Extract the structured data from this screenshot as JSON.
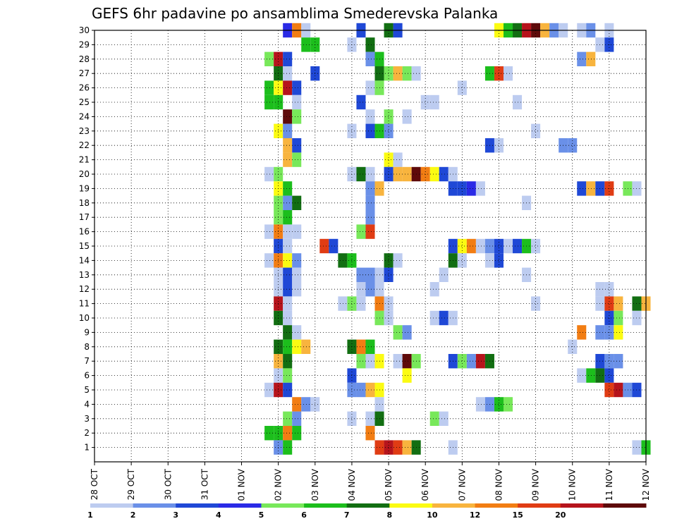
{
  "chart_data": {
    "type": "heatmap",
    "title": "GEFS 6hr padavine po ansamblima Smederevska Palanka",
    "xlabel": "",
    "ylabel": "",
    "x_tick_labels": [
      "28 OCT",
      "29 OCT",
      "30 OCT",
      "31 OCT",
      "01 NOV",
      "02 NOV",
      "03 NOV",
      "04 NOV",
      "05 NOV",
      "06 NOV",
      "07 NOV",
      "08 NOV",
      "09 NOV",
      "10 NOV",
      "11 NOV",
      "12 NOV"
    ],
    "y_tick_labels": [
      "1",
      "2",
      "3",
      "4",
      "5",
      "6",
      "7",
      "8",
      "9",
      "10",
      "11",
      "12",
      "13",
      "14",
      "15",
      "16",
      "17",
      "18",
      "19",
      "20",
      "21",
      "22",
      "23",
      "24",
      "25",
      "26",
      "27",
      "28",
      "29",
      "30"
    ],
    "x_range_steps": [
      0,
      60
    ],
    "y_range_members": [
      0,
      30
    ],
    "grid": true,
    "legend_position": "bottom",
    "colorbar": {
      "labels": [
        "1",
        "2",
        "3",
        "4",
        "5",
        "6",
        "7",
        "8",
        "10",
        "12",
        "15",
        "20"
      ],
      "colors": [
        "#bdccf0",
        "#6a90e8",
        "#1f48d6",
        "#2a2ae6",
        "#78e85a",
        "#1cbe1c",
        "#126e12",
        "#fbfb12",
        "#f8b43e",
        "#f27d13",
        "#e03c14",
        "#b6141c",
        "#5e0a0a"
      ]
    },
    "cell_level_note": "each cell value is an index into colorbar.colors (0 = lightest)",
    "cells": [
      {
        "m": 30,
        "s": [
          [
            21,
            3
          ],
          [
            22,
            9
          ],
          [
            23,
            0
          ],
          [
            29,
            2
          ],
          [
            32,
            6
          ],
          [
            33,
            2
          ],
          [
            44,
            7
          ],
          [
            45,
            5
          ],
          [
            46,
            6
          ],
          [
            47,
            11
          ],
          [
            48,
            12
          ],
          [
            49,
            8
          ],
          [
            50,
            1
          ],
          [
            51,
            0
          ],
          [
            53,
            0
          ],
          [
            54,
            1
          ],
          [
            56,
            0
          ]
        ]
      },
      {
        "m": 29,
        "s": [
          [
            23,
            5
          ],
          [
            24,
            5
          ],
          [
            28,
            0
          ],
          [
            30,
            6
          ],
          [
            55,
            0
          ],
          [
            56,
            2
          ]
        ]
      },
      {
        "m": 28,
        "s": [
          [
            19,
            4
          ],
          [
            20,
            11
          ],
          [
            21,
            2
          ],
          [
            30,
            1
          ],
          [
            31,
            5
          ],
          [
            53,
            1
          ],
          [
            54,
            8
          ]
        ]
      },
      {
        "m": 27,
        "s": [
          [
            20,
            6
          ],
          [
            21,
            0
          ],
          [
            24,
            2
          ],
          [
            31,
            6
          ],
          [
            32,
            4
          ],
          [
            33,
            8
          ],
          [
            34,
            4
          ],
          [
            35,
            0
          ],
          [
            43,
            5
          ],
          [
            44,
            10
          ],
          [
            45,
            0
          ]
        ]
      },
      {
        "m": 26,
        "s": [
          [
            19,
            5
          ],
          [
            20,
            7
          ],
          [
            21,
            11
          ],
          [
            22,
            2
          ],
          [
            30,
            0
          ],
          [
            31,
            4
          ],
          [
            40,
            0
          ]
        ]
      },
      {
        "m": 25,
        "s": [
          [
            19,
            5
          ],
          [
            20,
            5
          ],
          [
            22,
            0
          ],
          [
            29,
            2
          ],
          [
            36,
            0
          ],
          [
            37,
            0
          ],
          [
            46,
            0
          ]
        ]
      },
      {
        "m": 24,
        "s": [
          [
            21,
            12
          ],
          [
            22,
            4
          ],
          [
            30,
            0
          ],
          [
            32,
            4
          ],
          [
            34,
            0
          ]
        ]
      },
      {
        "m": 23,
        "s": [
          [
            20,
            7
          ],
          [
            21,
            1
          ],
          [
            28,
            0
          ],
          [
            30,
            2
          ],
          [
            31,
            5
          ],
          [
            32,
            1
          ],
          [
            48,
            0
          ]
        ]
      },
      {
        "m": 22,
        "s": [
          [
            21,
            8
          ],
          [
            22,
            2
          ],
          [
            43,
            2
          ],
          [
            44,
            0
          ],
          [
            51,
            1
          ],
          [
            52,
            1
          ]
        ]
      },
      {
        "m": 21,
        "s": [
          [
            21,
            8
          ],
          [
            22,
            4
          ],
          [
            32,
            7
          ],
          [
            33,
            0
          ]
        ]
      },
      {
        "m": 20,
        "s": [
          [
            19,
            0
          ],
          [
            20,
            4
          ],
          [
            28,
            0
          ],
          [
            29,
            6
          ],
          [
            30,
            0
          ],
          [
            32,
            2
          ],
          [
            33,
            8
          ],
          [
            34,
            8
          ],
          [
            35,
            12
          ],
          [
            36,
            9
          ],
          [
            37,
            7
          ],
          [
            38,
            2
          ],
          [
            39,
            0
          ]
        ]
      },
      {
        "m": 19,
        "s": [
          [
            20,
            7
          ],
          [
            21,
            5
          ],
          [
            30,
            1
          ],
          [
            31,
            8
          ],
          [
            39,
            2
          ],
          [
            40,
            2
          ],
          [
            41,
            3
          ],
          [
            42,
            0
          ],
          [
            53,
            2
          ],
          [
            54,
            8
          ],
          [
            55,
            2
          ],
          [
            56,
            10
          ],
          [
            58,
            4
          ],
          [
            59,
            0
          ]
        ]
      },
      {
        "m": 18,
        "s": [
          [
            20,
            4
          ],
          [
            21,
            1
          ],
          [
            22,
            6
          ],
          [
            30,
            1
          ],
          [
            47,
            0
          ]
        ]
      },
      {
        "m": 17,
        "s": [
          [
            20,
            4
          ],
          [
            21,
            5
          ],
          [
            30,
            1
          ]
        ]
      },
      {
        "m": 16,
        "s": [
          [
            19,
            0
          ],
          [
            20,
            9
          ],
          [
            21,
            0
          ],
          [
            22,
            0
          ],
          [
            29,
            4
          ],
          [
            30,
            10
          ]
        ]
      },
      {
        "m": 15,
        "s": [
          [
            20,
            2
          ],
          [
            21,
            0
          ],
          [
            25,
            10
          ],
          [
            26,
            2
          ],
          [
            39,
            2
          ],
          [
            40,
            7
          ],
          [
            41,
            9
          ],
          [
            42,
            0
          ],
          [
            43,
            1
          ],
          [
            44,
            2
          ],
          [
            45,
            0
          ],
          [
            46,
            2
          ],
          [
            47,
            5
          ],
          [
            48,
            0
          ]
        ]
      },
      {
        "m": 14,
        "s": [
          [
            19,
            0
          ],
          [
            20,
            9
          ],
          [
            21,
            7
          ],
          [
            22,
            1
          ],
          [
            27,
            6
          ],
          [
            28,
            5
          ],
          [
            32,
            6
          ],
          [
            33,
            0
          ],
          [
            39,
            6
          ],
          [
            40,
            0
          ],
          [
            43,
            0
          ],
          [
            44,
            2
          ]
        ]
      },
      {
        "m": 13,
        "s": [
          [
            20,
            0
          ],
          [
            21,
            2
          ],
          [
            22,
            0
          ],
          [
            29,
            1
          ],
          [
            30,
            1
          ],
          [
            31,
            0
          ],
          [
            32,
            2
          ],
          [
            38,
            0
          ],
          [
            47,
            0
          ]
        ]
      },
      {
        "m": 12,
        "s": [
          [
            20,
            0
          ],
          [
            21,
            2
          ],
          [
            22,
            0
          ],
          [
            29,
            0
          ],
          [
            30,
            1
          ],
          [
            31,
            0
          ],
          [
            37,
            0
          ],
          [
            55,
            0
          ],
          [
            56,
            0
          ]
        ]
      },
      {
        "m": 11,
        "s": [
          [
            20,
            11
          ],
          [
            21,
            0
          ],
          [
            27,
            0
          ],
          [
            28,
            4
          ],
          [
            29,
            0
          ],
          [
            31,
            9
          ],
          [
            32,
            0
          ],
          [
            48,
            0
          ],
          [
            55,
            0
          ],
          [
            56,
            10
          ],
          [
            57,
            8
          ],
          [
            59,
            6
          ],
          [
            60,
            8
          ]
        ]
      },
      {
        "m": 10,
        "s": [
          [
            20,
            6
          ],
          [
            21,
            0
          ],
          [
            31,
            4
          ],
          [
            32,
            0
          ],
          [
            37,
            0
          ],
          [
            38,
            2
          ],
          [
            39,
            0
          ],
          [
            56,
            2
          ],
          [
            57,
            4
          ],
          [
            59,
            0
          ]
        ]
      },
      {
        "m": 9,
        "s": [
          [
            21,
            6
          ],
          [
            22,
            0
          ],
          [
            33,
            4
          ],
          [
            34,
            1
          ],
          [
            53,
            9
          ],
          [
            55,
            1
          ],
          [
            56,
            1
          ],
          [
            57,
            7
          ]
        ]
      },
      {
        "m": 8,
        "s": [
          [
            20,
            6
          ],
          [
            21,
            5
          ],
          [
            22,
            7
          ],
          [
            23,
            8
          ],
          [
            28,
            6
          ],
          [
            29,
            9
          ],
          [
            30,
            5
          ],
          [
            52,
            0
          ]
        ]
      },
      {
        "m": 7,
        "s": [
          [
            20,
            8
          ],
          [
            21,
            6
          ],
          [
            29,
            4
          ],
          [
            30,
            0
          ],
          [
            31,
            7
          ],
          [
            33,
            0
          ],
          [
            34,
            12
          ],
          [
            35,
            4
          ],
          [
            39,
            2
          ],
          [
            40,
            4
          ],
          [
            41,
            1
          ],
          [
            42,
            11
          ],
          [
            43,
            6
          ],
          [
            55,
            2
          ],
          [
            56,
            1
          ],
          [
            57,
            1
          ]
        ]
      },
      {
        "m": 6,
        "s": [
          [
            20,
            0
          ],
          [
            21,
            4
          ],
          [
            28,
            2
          ],
          [
            34,
            7
          ],
          [
            53,
            0
          ],
          [
            54,
            5
          ],
          [
            55,
            6
          ],
          [
            56,
            2
          ]
        ]
      },
      {
        "m": 5,
        "s": [
          [
            19,
            0
          ],
          [
            20,
            11
          ],
          [
            21,
            2
          ],
          [
            28,
            1
          ],
          [
            29,
            1
          ],
          [
            30,
            8
          ],
          [
            31,
            7
          ],
          [
            56,
            10
          ],
          [
            57,
            11
          ],
          [
            58,
            1
          ],
          [
            59,
            2
          ]
        ]
      },
      {
        "m": 4,
        "s": [
          [
            22,
            9
          ],
          [
            23,
            1
          ],
          [
            24,
            0
          ],
          [
            31,
            0
          ],
          [
            42,
            0
          ],
          [
            43,
            1
          ],
          [
            44,
            5
          ],
          [
            45,
            4
          ]
        ]
      },
      {
        "m": 3,
        "s": [
          [
            21,
            4
          ],
          [
            22,
            1
          ],
          [
            28,
            0
          ],
          [
            30,
            0
          ],
          [
            31,
            6
          ],
          [
            37,
            4
          ],
          [
            38,
            0
          ]
        ]
      },
      {
        "m": 2,
        "s": [
          [
            19,
            5
          ],
          [
            20,
            5
          ],
          [
            21,
            9
          ],
          [
            22,
            5
          ],
          [
            30,
            9
          ]
        ]
      },
      {
        "m": 1,
        "s": [
          [
            20,
            1
          ],
          [
            21,
            5
          ],
          [
            31,
            10
          ],
          [
            32,
            11
          ],
          [
            33,
            10
          ],
          [
            34,
            8
          ],
          [
            35,
            6
          ],
          [
            39,
            0
          ],
          [
            59,
            0
          ],
          [
            60,
            5
          ]
        ]
      }
    ]
  }
}
